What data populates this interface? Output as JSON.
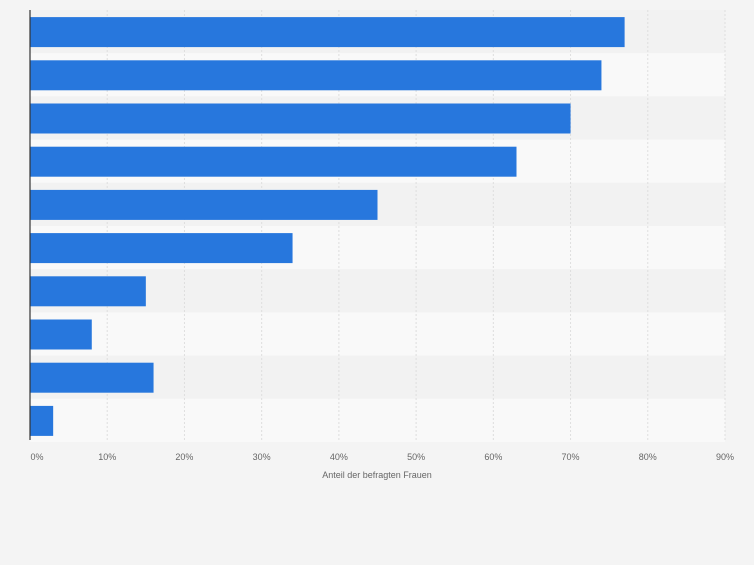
{
  "colors": {
    "background": "#f4f4f4",
    "bar": "#2777dd",
    "band_light": "#f9f9f9",
    "band_dark": "#f2f2f2",
    "grid": "#dedede",
    "axis": "#333333",
    "tick_text": "#666666"
  },
  "chart_data": {
    "type": "bar",
    "orientation": "horizontal",
    "categories": [
      "",
      "",
      "",
      "",
      "",
      "",
      "",
      "",
      "",
      ""
    ],
    "values": [
      77,
      74,
      70,
      63,
      45,
      34,
      15,
      8,
      16,
      3
    ],
    "title": "",
    "xlabel": "Anteil der befragten Frauen",
    "ylabel": "",
    "xlim": [
      0,
      90
    ],
    "x_ticks": [
      0,
      10,
      20,
      30,
      40,
      50,
      60,
      70,
      80,
      90
    ],
    "x_tick_labels": [
      "0%",
      "10%",
      "20%",
      "30%",
      "40%",
      "50%",
      "60%",
      "70%",
      "80%",
      "90%"
    ],
    "grid": true,
    "legend": "none"
  }
}
